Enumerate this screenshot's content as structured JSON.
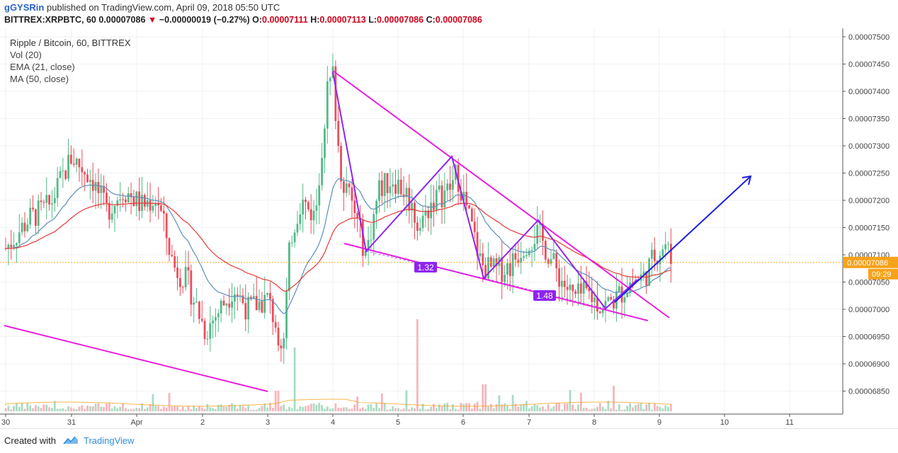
{
  "header": {
    "user": "gGYSRin",
    "published": "published on TradingView.com, April 09, 2018 05:50 UTC",
    "symbol": "BITTREX:XRPBTC, 60",
    "last": "0.00007086",
    "change": "−0.00000019 (−0.27%)",
    "open_label": "O:",
    "open": "0.00007111",
    "high_label": "H:",
    "high": "0.00007113",
    "low_label": "L:",
    "low": "0.00007086",
    "close_label": "C:",
    "close": "0.00007086"
  },
  "legend": {
    "title": "Ripple / Bitcoin, 60, BITTREX",
    "vol": "Vol (20)",
    "ema": "EMA (21, close)",
    "ma": "MA (50, close)"
  },
  "chart_data": {
    "type": "candlestick",
    "price_axis": {
      "ticks": [
        "0.00007500",
        "0.00007450",
        "0.00007400",
        "0.00007350",
        "0.00007300",
        "0.00007250",
        "0.00007200",
        "0.00007150",
        "0.00007100",
        "0.00007050",
        "0.00007000",
        "0.00006950",
        "0.00006900",
        "0.00006850"
      ],
      "ylim": [
        6.815e-05,
        7.52e-05
      ]
    },
    "time_axis": {
      "ticks": [
        "30",
        "31",
        "Apr",
        "2",
        "3",
        "4",
        "5",
        "6",
        "7",
        "8",
        "9",
        "10",
        "11"
      ]
    },
    "last_price": "0.00007086",
    "countdown": "09:29",
    "annotations": [
      "1.32",
      "1.48"
    ],
    "colors": {
      "up": "#53b987",
      "down": "#eb4d5c",
      "ema": "#e53935",
      "ma": "#5b8fb9",
      "trend": "#e91ee0",
      "pattern": "#8e24f0",
      "arrow": "#1e1ee0",
      "price_line": "#f7a21b"
    }
  },
  "footer": {
    "created": "Created with",
    "brand": "TradingView"
  }
}
